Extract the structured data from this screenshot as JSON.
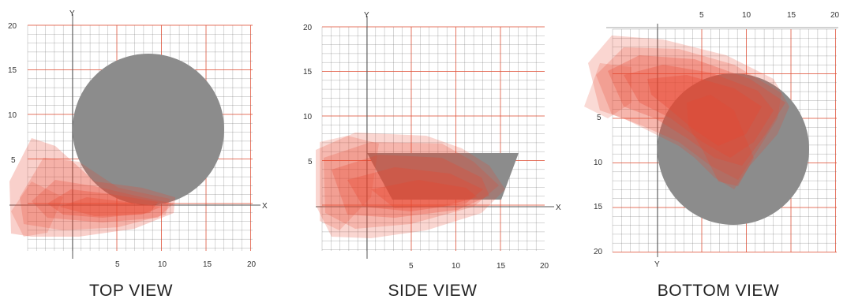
{
  "colors": {
    "grid_minor": "#6f6f6f",
    "grid_major": "#e0523a",
    "axis": "#444444",
    "object": "#8c8c8c",
    "blob": "#e8452e"
  },
  "panels": [
    {
      "caption": "TOP VIEW",
      "x_axis_name": "X",
      "y_axis_name": "Y",
      "x_ticks": [
        "5",
        "10",
        "15",
        "20"
      ],
      "y_ticks": [
        "20",
        "15",
        "10",
        "5"
      ],
      "object_shape": "circle"
    },
    {
      "caption": "SIDE VIEW",
      "x_axis_name": "X",
      "y_axis_name": "Y",
      "x_ticks": [
        "5",
        "10",
        "15",
        "20"
      ],
      "y_ticks": [
        "20",
        "15",
        "10",
        "5"
      ],
      "object_shape": "trapezoid"
    },
    {
      "caption": "BOTTOM VIEW",
      "x_axis_name": "",
      "y_axis_name": "Y",
      "x_ticks": [
        "5",
        "10",
        "15",
        "20"
      ],
      "y_ticks": [
        "5",
        "10",
        "15",
        "20"
      ],
      "object_shape": "circle"
    }
  ]
}
